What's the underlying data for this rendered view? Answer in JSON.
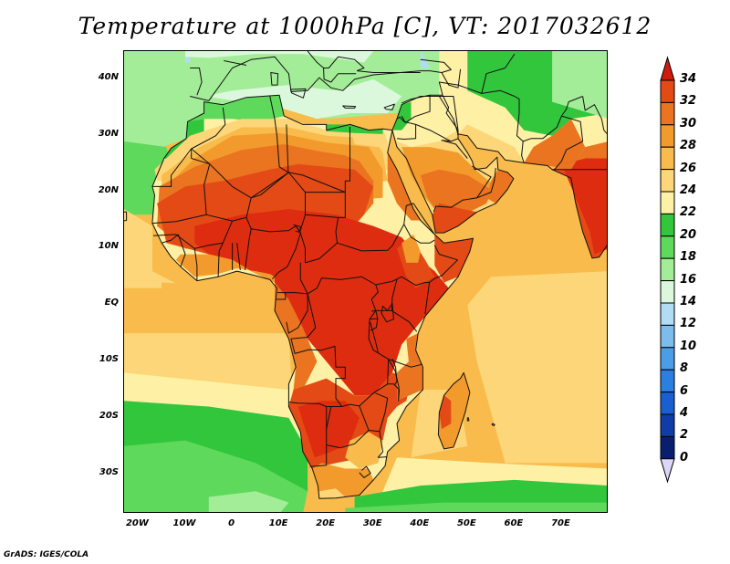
{
  "title": "Temperature at 1000hPa [C], VT: 2017032612",
  "credit": "GrADS: IGES/COLA",
  "map": {
    "lon_range": [
      -23,
      80
    ],
    "lat_range": [
      -37,
      45
    ],
    "lat_ticks": [
      {
        "lat": 40,
        "label": "40N"
      },
      {
        "lat": 30,
        "label": "30N"
      },
      {
        "lat": 20,
        "label": "20N"
      },
      {
        "lat": 10,
        "label": "10N"
      },
      {
        "lat": 0,
        "label": "EQ"
      },
      {
        "lat": -10,
        "label": "10S"
      },
      {
        "lat": -20,
        "label": "20S"
      },
      {
        "lat": -30,
        "label": "30S"
      }
    ],
    "lon_ticks": [
      {
        "lon": -20,
        "label": "20W"
      },
      {
        "lon": -10,
        "label": "10W"
      },
      {
        "lon": 0,
        "label": "0"
      },
      {
        "lon": 10,
        "label": "10E"
      },
      {
        "lon": 20,
        "label": "20E"
      },
      {
        "lon": 30,
        "label": "30E"
      },
      {
        "lon": 40,
        "label": "40E"
      },
      {
        "lon": 50,
        "label": "50E"
      },
      {
        "lon": 60,
        "label": "60E"
      },
      {
        "lon": 70,
        "label": "70E"
      }
    ]
  },
  "colorbar": {
    "levels": [
      {
        "value": 34,
        "label": "34",
        "color": "#de2c10"
      },
      {
        "value": 32,
        "label": "32",
        "color": "#e44a16"
      },
      {
        "value": 30,
        "label": "30",
        "color": "#ea7420"
      },
      {
        "value": 28,
        "label": "28",
        "color": "#f39a2d"
      },
      {
        "value": 26,
        "label": "26",
        "color": "#f8bb4c"
      },
      {
        "value": 24,
        "label": "24",
        "color": "#fcd678"
      },
      {
        "value": 22,
        "label": "22",
        "color": "#fef0a4"
      },
      {
        "value": 20,
        "label": "20",
        "color": "#31c63c"
      },
      {
        "value": 18,
        "label": "18",
        "color": "#5fd95c"
      },
      {
        "value": 16,
        "label": "16",
        "color": "#a4ed98"
      },
      {
        "value": 14,
        "label": "14",
        "color": "#dcf8dc"
      },
      {
        "value": 12,
        "label": "12",
        "color": "#b2dcf6"
      },
      {
        "value": 10,
        "label": "10",
        "color": "#7cbdee"
      },
      {
        "value": 8,
        "label": "8",
        "color": "#4b9de8"
      },
      {
        "value": 6,
        "label": "6",
        "color": "#2a7fe1"
      },
      {
        "value": 4,
        "label": "4",
        "color": "#1a5fd0"
      },
      {
        "value": 2,
        "label": "2",
        "color": "#103ca8"
      },
      {
        "value": 0,
        "label": "0",
        "color": "#0a1e6e"
      }
    ],
    "over_color": "#d01c0c",
    "under_color": "#dcd6f8"
  }
}
